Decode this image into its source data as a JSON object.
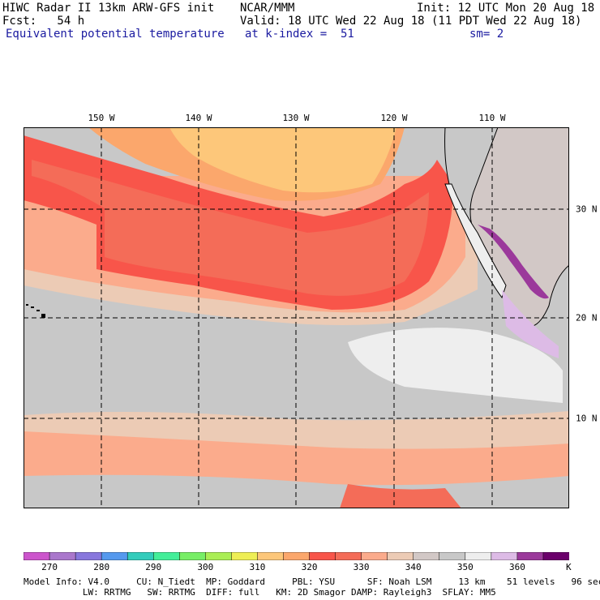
{
  "header": {
    "line1_left": "HIWC Radar II 13km ARW-GFS init",
    "line1_mid": "NCAR/MMM",
    "line1_right": "Init: 12 UTC Mon 20 Aug 18",
    "line2_left": "Fcst:   54 h",
    "line2_right": "Valid: 18 UTC Wed 22 Aug 18 (11 PDT Wed 22 Aug 18)",
    "line3_field": "Equivalent potential temperature",
    "line3_level": "at k-index =  51",
    "line3_smooth": "sm= 2"
  },
  "map": {
    "lon_labels": [
      "150 W",
      "140 W",
      "130 W",
      "120 W",
      "110 W"
    ],
    "lat_labels": [
      "30 N",
      "20 N",
      "10 N"
    ],
    "grid_style": "dashed",
    "colors": {
      "land_outline": "#000000",
      "theta_e_320": "#fdc77a",
      "theta_e_325": "#fba76c",
      "theta_e_330": "#f8554a",
      "theta_e_335": "#f46c58",
      "theta_e_340": "#fbab8c",
      "theta_e_345": "#eccbb5",
      "theta_e_350": "#d2c8c6",
      "theta_e_355": "#c8c8c8",
      "theta_e_360": "#eeeeee",
      "theta_e_365": "#ddbbe6",
      "theta_e_370": "#9b399b"
    }
  },
  "colorbar": {
    "tick_labels": [
      "270",
      "280",
      "290",
      "300",
      "310",
      "320",
      "330",
      "340",
      "350",
      "360"
    ],
    "unit": "K",
    "colors": [
      "#cc55cc",
      "#aa77cc",
      "#8877dd",
      "#5599ee",
      "#33ccbb",
      "#44ee99",
      "#77ee66",
      "#aaee55",
      "#eeee55",
      "#fdc77a",
      "#fba76c",
      "#f8554a",
      "#f46c58",
      "#fbab8c",
      "#eccbb5",
      "#d2c8c6",
      "#c8c8c8",
      "#eeeeee",
      "#ddbbe6",
      "#9b399b",
      "#6b006b"
    ]
  },
  "footer": {
    "line1": "Model Info: V4.0     CU: N_Tiedt  MP: Goddard     PBL: YSU      SF: Noah LSM     13 km    51 levels   96 sec",
    "line2": "           LW: RRTMG   SW: RRTMG  DIFF: full   KM: 2D Smagor DAMP: Rayleigh3  SFLAY: MM5"
  }
}
